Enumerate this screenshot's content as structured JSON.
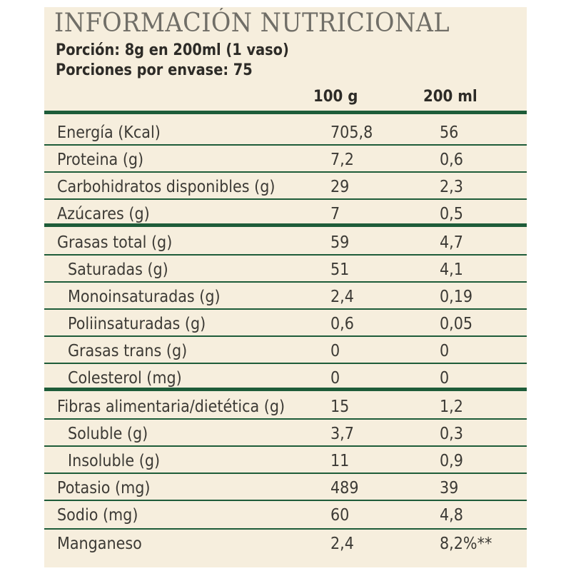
{
  "title": "INFORMACIÓN NUTRICIONAL",
  "serving": "Porción: 8g en 200ml (1 vaso)",
  "servings_per_container": "Porciones por envase: 75",
  "columns": {
    "per_100g": "100 g",
    "per_200ml": "200 ml"
  },
  "rows": [
    {
      "name": "Energía (Kcal)",
      "per_100g": "705,8",
      "per_200ml": "56"
    },
    {
      "name": "Proteina (g)",
      "per_100g": "7,2",
      "per_200ml": "0,6"
    },
    {
      "name": "Carbohidratos disponibles (g)",
      "per_100g": "29",
      "per_200ml": "2,3"
    },
    {
      "name": "Azúcares (g)",
      "per_100g": "7",
      "per_200ml": "0,5"
    },
    {
      "name": "Grasas total (g)",
      "per_100g": "59",
      "per_200ml": "4,7"
    },
    {
      "name": "Saturadas (g)",
      "per_100g": "51",
      "per_200ml": "4,1"
    },
    {
      "name": "Monoinsaturadas (g)",
      "per_100g": "2,4",
      "per_200ml": "0,19"
    },
    {
      "name": "Poliinsaturadas (g)",
      "per_100g": "0,6",
      "per_200ml": "0,05"
    },
    {
      "name": "Grasas trans (g)",
      "per_100g": "0",
      "per_200ml": "0"
    },
    {
      "name": "Colesterol (mg)",
      "per_100g": "0",
      "per_200ml": "0"
    },
    {
      "name": "Fibras alimentaria/dietética (g)",
      "per_100g": "15",
      "per_200ml": "1,2"
    },
    {
      "name": "Soluble  (g)",
      "per_100g": "3,7",
      "per_200ml": "0,3"
    },
    {
      "name": "Insoluble (g)",
      "per_100g": "11",
      "per_200ml": "0,9"
    },
    {
      "name": "Potasio (mg)",
      "per_100g": "489",
      "per_200ml": "39"
    },
    {
      "name": "Sodio (mg)",
      "per_100g": "60",
      "per_200ml": "4,8"
    },
    {
      "name": "Manganeso",
      "per_100g": "2,4",
      "per_200ml": "8,2%**"
    }
  ],
  "colors": {
    "panel": "#f6eedd",
    "rule": "#1e5c39",
    "title": "#706e67",
    "text": "#3c3a35"
  }
}
